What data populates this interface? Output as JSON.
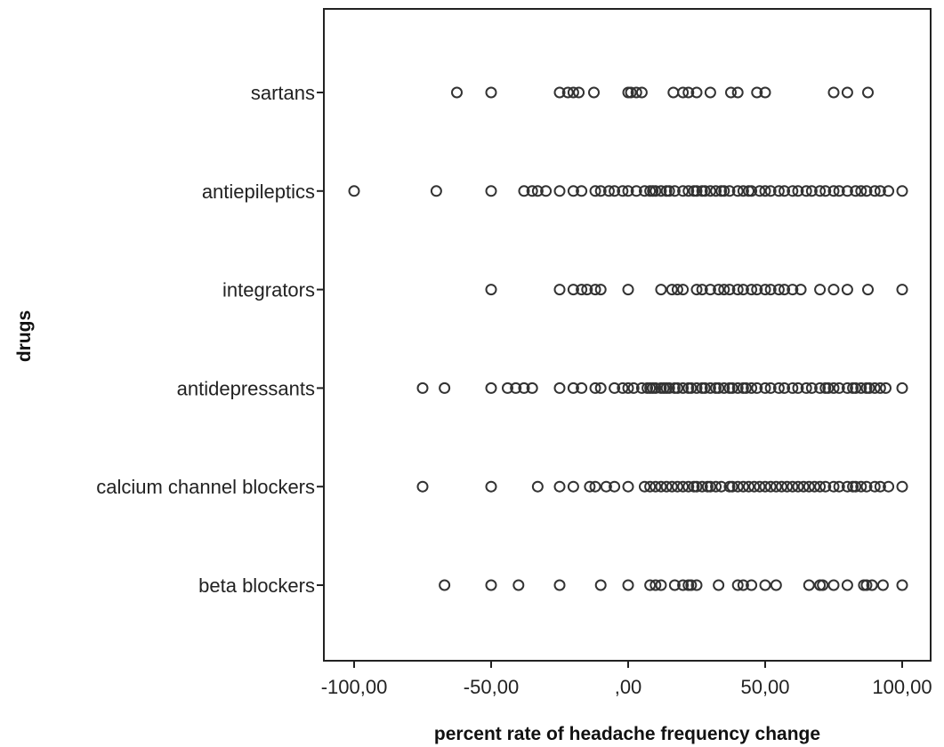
{
  "chart_data": {
    "type": "scatter",
    "title": "",
    "xlabel": "percent rate of  headache frequency change",
    "ylabel": "drugs",
    "xlim": [
      -110,
      110
    ],
    "x_ticks": [
      -100,
      -50,
      0,
      50,
      100
    ],
    "x_tick_labels": [
      "-100,00",
      "-50,00",
      ",00",
      "50,00",
      "100,00"
    ],
    "categories": [
      "sartans",
      "antiepileptics",
      "integrators",
      "antidepressants",
      "calcium channel blockers",
      "beta blockers"
    ],
    "grid": false,
    "series": [
      {
        "category": "sartans",
        "x": [
          -62.5,
          -50,
          -25,
          -22,
          -20,
          -18,
          -12.5,
          0,
          1,
          3,
          5,
          16.5,
          20,
          22,
          25,
          30,
          37.5,
          40,
          47,
          50,
          75,
          80,
          87.5
        ]
      },
      {
        "category": "antiepileptics",
        "x": [
          -100,
          -70,
          -50,
          -38,
          -35,
          -33,
          -30,
          -25,
          -20,
          -17,
          -12,
          -10,
          -7,
          -5,
          -2,
          0,
          3,
          6,
          8,
          9,
          10,
          12,
          14,
          15,
          17,
          20,
          22,
          24,
          25,
          27,
          28,
          30,
          32,
          34,
          35,
          37,
          40,
          42,
          44,
          45,
          48,
          50,
          52,
          55,
          57,
          60,
          62,
          65,
          67,
          70,
          72,
          75,
          77,
          80,
          83,
          85,
          87,
          90,
          92,
          95,
          100
        ]
      },
      {
        "category": "integrators",
        "x": [
          -50,
          -25,
          -20,
          -17,
          -15,
          -12,
          -10,
          0,
          12,
          16,
          18,
          20,
          25,
          27,
          30,
          33,
          35,
          37,
          40,
          42,
          45,
          47,
          50,
          52,
          55,
          57,
          60,
          63,
          70,
          75,
          80,
          87.5,
          100
        ]
      },
      {
        "category": "antidepressants",
        "x": [
          -75,
          -67,
          -50,
          -44,
          -41,
          -38,
          -35,
          -25,
          -20,
          -17,
          -12,
          -10,
          -5,
          -2,
          0,
          2,
          5,
          7,
          8,
          9,
          10,
          12,
          13,
          14,
          15,
          17,
          18,
          20,
          22,
          23,
          25,
          27,
          28,
          30,
          32,
          33,
          35,
          37,
          38,
          40,
          42,
          43,
          45,
          47,
          50,
          52,
          55,
          57,
          60,
          62,
          65,
          67,
          70,
          72,
          73,
          75,
          77,
          80,
          82,
          83,
          85,
          87,
          88,
          90,
          92,
          94,
          100
        ]
      },
      {
        "category": "calcium channel blockers",
        "x": [
          -75,
          -50,
          -33,
          -25,
          -20,
          -14,
          -12,
          -8,
          -5,
          0,
          6,
          8,
          10,
          12,
          14,
          16,
          18,
          20,
          22,
          24,
          25,
          27,
          29,
          30,
          32,
          34,
          37,
          38,
          40,
          42,
          44,
          46,
          48,
          50,
          52,
          54,
          56,
          58,
          60,
          62,
          64,
          66,
          68,
          70,
          72,
          75,
          77,
          80,
          82,
          83,
          85,
          87,
          90,
          92,
          95,
          100
        ]
      },
      {
        "category": "beta blockers",
        "x": [
          -67,
          -50,
          -40,
          -25,
          -10,
          0,
          8,
          10,
          12,
          17,
          20,
          22,
          23,
          25,
          33,
          40,
          42,
          45,
          50,
          54,
          66,
          70,
          71,
          75,
          80,
          86,
          87,
          89,
          93,
          100
        ]
      }
    ]
  }
}
